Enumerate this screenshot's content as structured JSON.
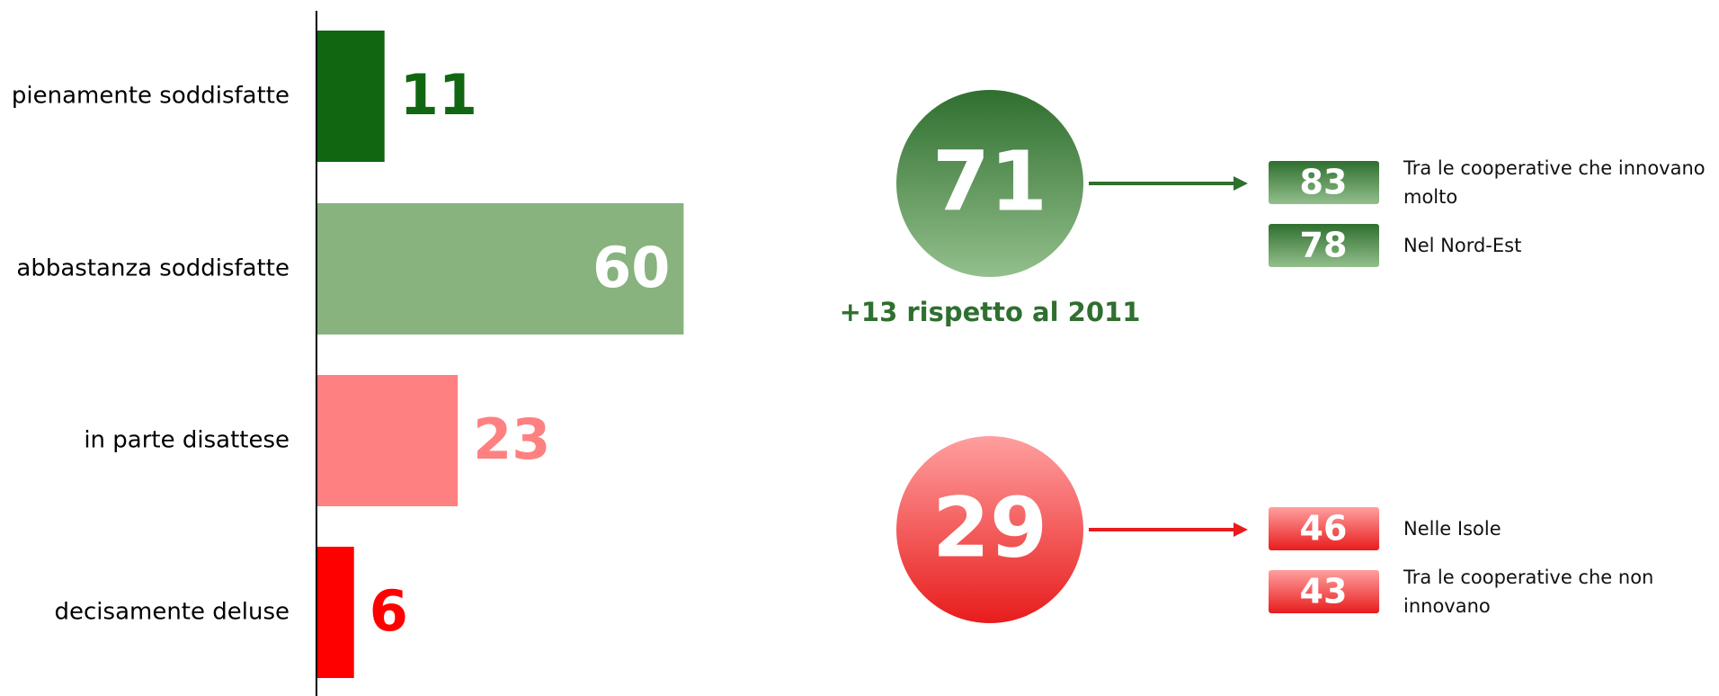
{
  "chart_data": {
    "type": "bar",
    "orientation": "horizontal",
    "categories": [
      "pienamente soddisfatte",
      "abbastanza soddisfatte",
      "in parte disattese",
      "decisamente deluse"
    ],
    "values": [
      11,
      60,
      23,
      6
    ],
    "colors": [
      "#116611",
      "#88b27e",
      "#ff8080",
      "#ff0000"
    ]
  },
  "summary": [
    {
      "value": 71,
      "colors": [
        "#2f6f2f",
        "#93bf8c"
      ],
      "note": "+13 rispetto al 2011",
      "details": [
        {
          "value": 83,
          "label": "Tra le cooperative che innovano molto"
        },
        {
          "value": 78,
          "label": "Nel Nord-Est"
        }
      ]
    },
    {
      "value": 29,
      "colors": [
        "#ff9f9f",
        "#e81c1c"
      ],
      "details": [
        {
          "value": 46,
          "label": "Nelle Isole"
        },
        {
          "value": 43,
          "label": "Tra le cooperative che non innovano"
        }
      ]
    }
  ]
}
